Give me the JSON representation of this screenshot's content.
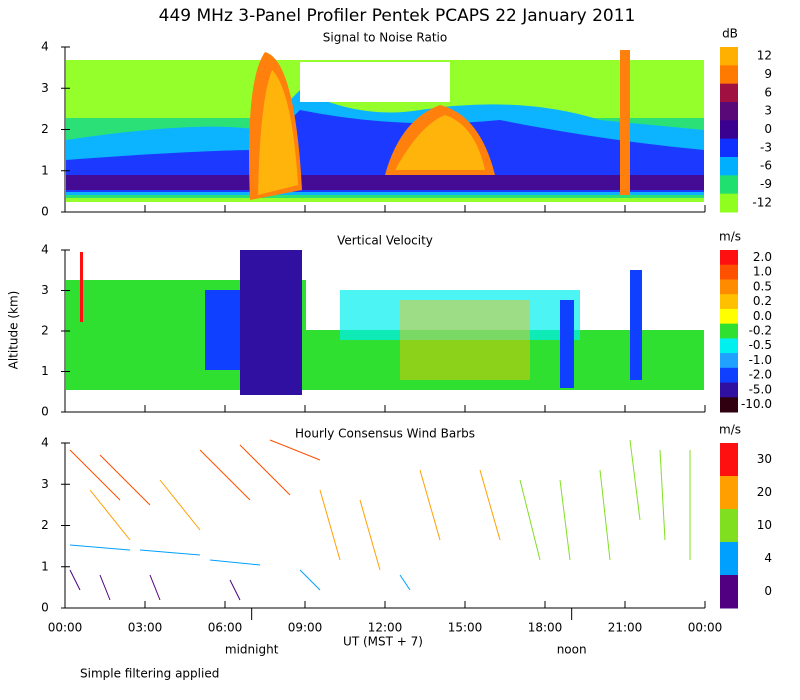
{
  "title": "449 MHz 3-Panel Profiler Pentek PCAPS 22 January 2011",
  "x_axis": {
    "label": "UT  (MST + 7)",
    "xlim": [
      0,
      24
    ],
    "xticks": [
      {
        "value": 0,
        "label": "00:00"
      },
      {
        "value": 3,
        "label": "03:00"
      },
      {
        "value": 6,
        "label": "06:00"
      },
      {
        "value": 9,
        "label": "09:00"
      },
      {
        "value": 12,
        "label": "12:00"
      },
      {
        "value": 15,
        "label": "15:00"
      },
      {
        "value": 18,
        "label": "18:00"
      },
      {
        "value": 21,
        "label": "21:00"
      },
      {
        "value": 24,
        "label": "00:00"
      }
    ],
    "annotations": [
      {
        "value": 7,
        "label": "midnight"
      },
      {
        "value": 19,
        "label": "noon"
      }
    ]
  },
  "ylabel": "Altitude (km)",
  "footnote": "Simple filtering applied",
  "chart_data": [
    {
      "type": "heatmap",
      "title": "Signal to Noise Ratio",
      "ylim": [
        0,
        4
      ],
      "yticks": [
        0,
        1,
        2,
        3,
        4
      ],
      "colorbar": {
        "unit": "dB",
        "levels": [
          12,
          9,
          6,
          3,
          0,
          -3,
          -6,
          -9,
          -12
        ],
        "colors": [
          "#ffb000",
          "#ff7a00",
          "#a01040",
          "#5a0a78",
          "#3a0090",
          "#1030ff",
          "#00b0ff",
          "#20e070",
          "#90ff20"
        ]
      }
    },
    {
      "type": "heatmap",
      "title": "Vertical Velocity",
      "ylim": [
        0,
        4
      ],
      "yticks": [
        0,
        1,
        2,
        3,
        4
      ],
      "colorbar": {
        "unit": "m/s",
        "levels": [
          {
            "value": 2,
            "label": "2.0"
          },
          {
            "value": 1,
            "label": "1.0"
          },
          0.5,
          0.2,
          {
            "value": 0,
            "label": "0.0"
          },
          -0.2,
          -0.5,
          {
            "value": -1,
            "label": "-1.0"
          },
          {
            "value": -2,
            "label": "-2.0"
          },
          {
            "value": -5,
            "label": "-5.0"
          },
          {
            "value": -10,
            "label": "-10.0"
          }
        ],
        "colors": [
          "#ff1010",
          "#ff5000",
          "#ff8c00",
          "#ffc000",
          "#ffff00",
          "#30e030",
          "#00f0f0",
          "#20a0ff",
          "#1040ff",
          "#3010a0",
          "#300010"
        ]
      }
    },
    {
      "type": "wind-barbs",
      "title": "Hourly Consensus Wind Barbs",
      "ylim": [
        0,
        4
      ],
      "yticks": [
        0,
        1,
        2,
        3,
        4
      ],
      "colorbar": {
        "unit": "m/s",
        "levels": [
          30,
          20,
          10,
          4,
          0
        ],
        "colors": [
          "#ff1010",
          "#ffa000",
          "#80e020",
          "#00a0ff",
          "#500080"
        ]
      }
    }
  ]
}
